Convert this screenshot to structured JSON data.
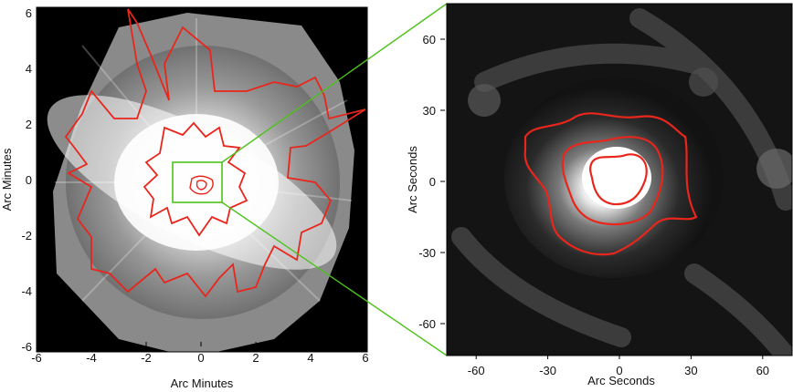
{
  "left_panel": {
    "xlabel": "Arc Minutes",
    "ylabel": "Arc Minutes",
    "xticks": [
      "-6",
      "-4",
      "-2",
      "0",
      "2",
      "4",
      "6"
    ],
    "yticks": [
      "6",
      "4",
      "2",
      "0",
      "-2",
      "-4",
      "-6"
    ],
    "range": [
      -6,
      6
    ]
  },
  "right_panel": {
    "xlabel": "Arc Seconds",
    "ylabel": "Arc Seconds",
    "xticks": [
      "-60",
      "-30",
      "0",
      "30",
      "60"
    ],
    "yticks": [
      "60",
      "30",
      "0",
      "-30",
      "-60"
    ],
    "range": [
      -75,
      75
    ]
  },
  "colors": {
    "contour": "#e8261c",
    "zoom_box": "#4cc21a",
    "image_background": "#000000"
  }
}
